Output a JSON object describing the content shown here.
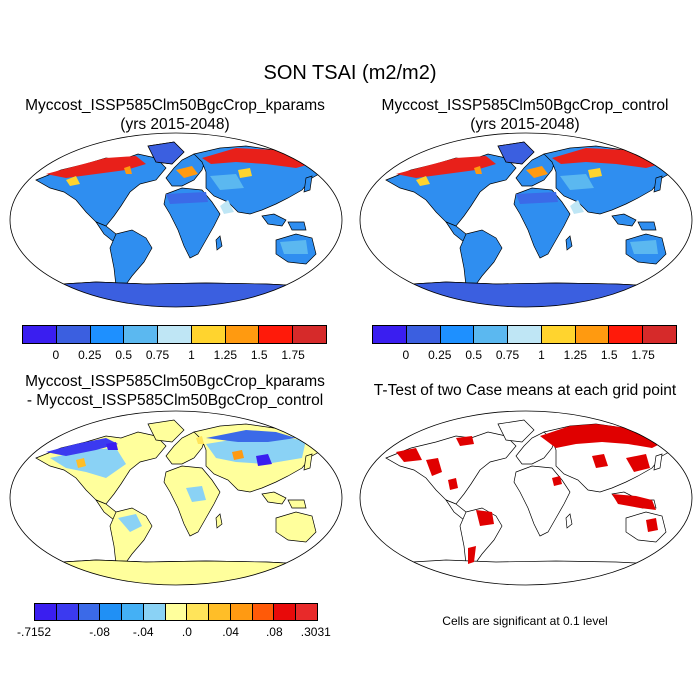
{
  "main_title": "SON TSAI (m2/m2)",
  "panels": {
    "top_left": {
      "line1": "Myccost_ISSP585Clm50BgcCrop_kparams",
      "line2": "(yrs 2015-2048)"
    },
    "top_right": {
      "line1": "Myccost_ISSP585Clm50BgcCrop_control",
      "line2": "(yrs 2015-2048)"
    },
    "bottom_left": {
      "line1": "Myccost_ISSP585Clm50BgcCrop_kparams",
      "line2": "- Myccost_ISSP585Clm50BgcCrop_control"
    },
    "bottom_right": {
      "line1": "T-Test of two Case means at each grid point"
    }
  },
  "colorbar_abs": {
    "colors": [
      "#3a1ef0",
      "#3b5fe0",
      "#1e90ff",
      "#5bb8f0",
      "#bfe6f5",
      "#ffd42e",
      "#ff9a10",
      "#ff1a0a",
      "#d62a2a"
    ],
    "labels": [
      "0",
      "0.25",
      "0.5",
      "0.75",
      "1",
      "1.25",
      "1.5",
      "1.75"
    ]
  },
  "colorbar_diff": {
    "colors": [
      "#3a1ef0",
      "#3b3af0",
      "#3b6ae8",
      "#2090f5",
      "#44b0f5",
      "#8ad2f5",
      "#ffff9c",
      "#ffe45a",
      "#ffbe28",
      "#ff9a12",
      "#ff5a08",
      "#e80a0a",
      "#e82a2a"
    ],
    "labels": [
      "-.7152",
      "-.08",
      "-.04",
      ".0",
      ".04",
      ".08",
      ".3031"
    ]
  },
  "significance_note": "Cells are significant at 0.1 level"
}
